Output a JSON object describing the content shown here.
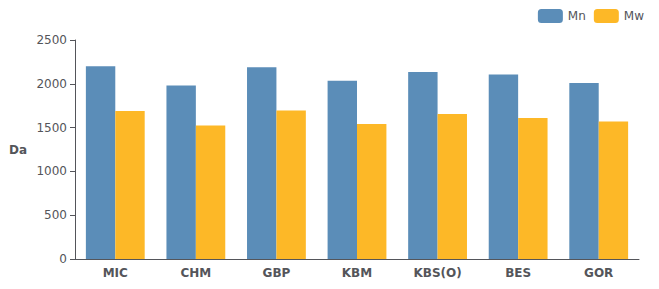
{
  "chart_data": {
    "type": "bar",
    "ylabel": "Da",
    "categories": [
      "MIC",
      "CHM",
      "GBP",
      "KBM",
      "KBS(O)",
      "BES",
      "GOR"
    ],
    "series": [
      {
        "name": "Mn",
        "color": "#5B8DB8",
        "values": [
          2200,
          1980,
          2190,
          2035,
          2135,
          2105,
          2010
        ]
      },
      {
        "name": "Mw",
        "color": "#FDB827",
        "values": [
          1690,
          1525,
          1695,
          1540,
          1655,
          1610,
          1570
        ]
      }
    ],
    "ylim": [
      0,
      2500
    ],
    "yticks": [
      0,
      500,
      1000,
      1500,
      2000,
      2500
    ],
    "grid": false,
    "legend": "upper right"
  }
}
